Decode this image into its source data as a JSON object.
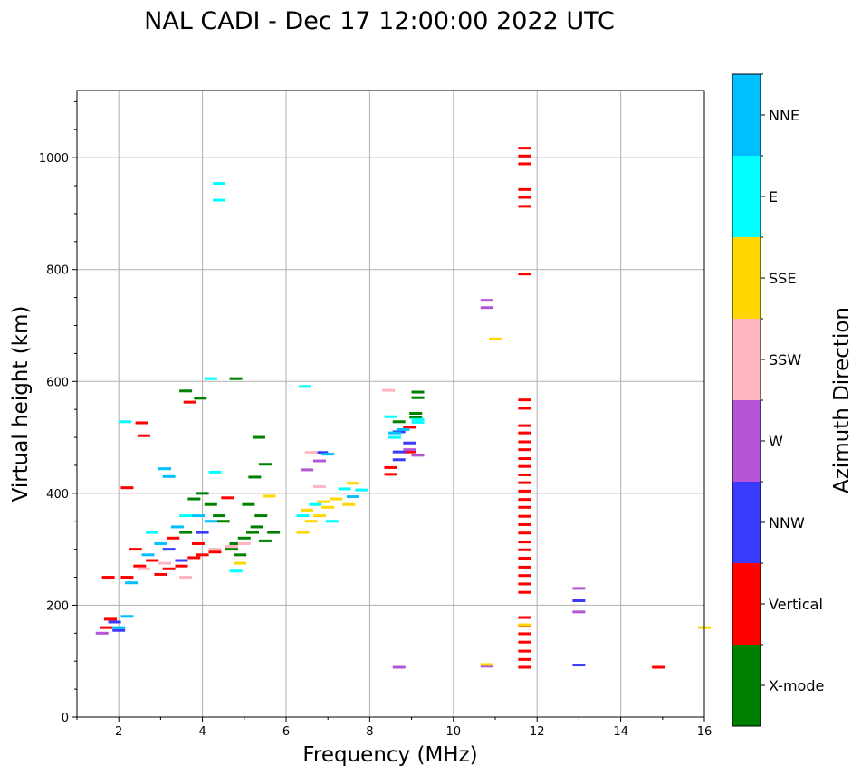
{
  "chart_data": {
    "type": "scatter",
    "title": "NAL CADI - Dec 17 12:00:00 2022 UTC",
    "xlabel": "Frequency (MHz)",
    "ylabel": "Virtual height (km)",
    "xlim": [
      1,
      16
    ],
    "ylim": [
      0,
      1120
    ],
    "xticks": [
      "2",
      "4",
      "6",
      "8",
      "10",
      "12",
      "14",
      "16"
    ],
    "xtick_values": [
      2,
      4,
      6,
      8,
      10,
      12,
      14,
      16
    ],
    "yticks": [
      "0",
      "200",
      "400",
      "600",
      "800",
      "1000"
    ],
    "ytick_values": [
      0,
      200,
      400,
      600,
      800,
      1000
    ],
    "grid": true,
    "colorbar": {
      "label": "Azimuth Direction",
      "categories": [
        {
          "name": "X-mode",
          "color": "#008000"
        },
        {
          "name": "Vertical",
          "color": "#ff0000"
        },
        {
          "name": "NNW",
          "color": "#3a3aff"
        },
        {
          "name": "W",
          "color": "#b455d6"
        },
        {
          "name": "SSW",
          "color": "#ffb6c1"
        },
        {
          "name": "SSE",
          "color": "#ffd700"
        },
        {
          "name": "E",
          "color": "#00ffff"
        },
        {
          "name": "NNE",
          "color": "#00bfff"
        }
      ]
    },
    "series": [
      {
        "name": "Vertical",
        "points": [
          [
            11.7,
            1017
          ],
          [
            11.7,
            1003
          ],
          [
            11.7,
            989
          ],
          [
            11.7,
            943
          ],
          [
            11.7,
            929
          ],
          [
            11.7,
            913
          ],
          [
            11.7,
            792
          ],
          [
            11.7,
            567
          ],
          [
            11.7,
            552
          ],
          [
            11.7,
            521
          ],
          [
            11.7,
            508
          ],
          [
            11.7,
            492
          ],
          [
            11.7,
            478
          ],
          [
            11.7,
            462
          ],
          [
            11.7,
            448
          ],
          [
            11.7,
            433
          ],
          [
            11.7,
            419
          ],
          [
            11.7,
            404
          ],
          [
            11.7,
            389
          ],
          [
            11.7,
            375
          ],
          [
            11.7,
            359
          ],
          [
            11.7,
            344
          ],
          [
            11.7,
            329
          ],
          [
            11.7,
            313
          ],
          [
            11.7,
            299
          ],
          [
            11.7,
            284
          ],
          [
            11.7,
            268
          ],
          [
            11.7,
            253
          ],
          [
            11.7,
            238
          ],
          [
            11.7,
            223
          ],
          [
            11.7,
            178
          ],
          [
            11.7,
            164
          ],
          [
            11.7,
            149
          ],
          [
            11.7,
            134
          ],
          [
            11.7,
            118
          ],
          [
            11.7,
            103
          ],
          [
            11.7,
            89
          ],
          [
            14.9,
            89
          ],
          [
            8.95,
            518
          ],
          [
            8.95,
            474
          ],
          [
            8.5,
            446
          ],
          [
            8.5,
            434
          ],
          [
            3.7,
            563
          ],
          [
            2.55,
            526
          ],
          [
            2.6,
            503
          ],
          [
            4.6,
            392
          ],
          [
            2.2,
            410
          ],
          [
            2.2,
            250
          ],
          [
            2.5,
            270
          ],
          [
            2.8,
            280
          ],
          [
            3.0,
            255
          ],
          [
            3.2,
            265
          ],
          [
            3.5,
            270
          ],
          [
            3.8,
            285
          ],
          [
            4.0,
            290
          ],
          [
            2.4,
            300
          ],
          [
            1.7,
            160
          ],
          [
            1.8,
            175
          ],
          [
            1.75,
            250
          ],
          [
            3.3,
            320
          ],
          [
            3.9,
            310
          ],
          [
            4.3,
            295
          ]
        ]
      },
      {
        "name": "X-mode",
        "points": [
          [
            9.15,
            581
          ],
          [
            9.15,
            571
          ],
          [
            9.1,
            543
          ],
          [
            9.1,
            536
          ],
          [
            8.7,
            528
          ],
          [
            3.6,
            583
          ],
          [
            4.8,
            605
          ],
          [
            3.95,
            570
          ],
          [
            5.35,
            500
          ],
          [
            5.5,
            452
          ],
          [
            4.7,
            300
          ],
          [
            4.8,
            310
          ],
          [
            5.0,
            320
          ],
          [
            5.2,
            330
          ],
          [
            5.3,
            340
          ],
          [
            5.5,
            315
          ],
          [
            5.7,
            330
          ],
          [
            4.5,
            350
          ],
          [
            4.2,
            380
          ],
          [
            4.0,
            400
          ],
          [
            3.8,
            390
          ],
          [
            5.1,
            380
          ],
          [
            5.4,
            360
          ],
          [
            4.9,
            290
          ],
          [
            4.4,
            360
          ],
          [
            3.6,
            330
          ],
          [
            5.25,
            429
          ]
        ]
      },
      {
        "name": "NNW",
        "points": [
          [
            13.0,
            208
          ],
          [
            13.0,
            93
          ],
          [
            8.7,
            510
          ],
          [
            8.7,
            474
          ],
          [
            8.7,
            460
          ],
          [
            8.95,
            490
          ],
          [
            6.85,
            473
          ],
          [
            2.0,
            155
          ],
          [
            1.9,
            170
          ],
          [
            3.2,
            300
          ],
          [
            4.0,
            330
          ],
          [
            3.5,
            280
          ]
        ]
      },
      {
        "name": "W",
        "points": [
          [
            10.8,
            745
          ],
          [
            10.8,
            732
          ],
          [
            10.8,
            91
          ],
          [
            8.7,
            89
          ],
          [
            9.15,
            468
          ],
          [
            8.95,
            478
          ],
          [
            13.0,
            230
          ],
          [
            13.0,
            188
          ],
          [
            6.8,
            458
          ],
          [
            6.5,
            442
          ],
          [
            1.6,
            150
          ]
        ]
      },
      {
        "name": "SSW",
        "points": [
          [
            8.45,
            584
          ],
          [
            6.6,
            473
          ],
          [
            6.8,
            412
          ],
          [
            2.6,
            265
          ],
          [
            3.1,
            275
          ],
          [
            3.6,
            250
          ],
          [
            4.3,
            300
          ],
          [
            4.7,
            305
          ],
          [
            5.0,
            310
          ]
        ]
      },
      {
        "name": "SSE",
        "points": [
          [
            11.0,
            676
          ],
          [
            10.8,
            94
          ],
          [
            11.7,
            165
          ],
          [
            16.0,
            160
          ],
          [
            6.4,
            330
          ],
          [
            6.6,
            350
          ],
          [
            6.8,
            360
          ],
          [
            7.0,
            375
          ],
          [
            7.2,
            390
          ],
          [
            7.5,
            380
          ],
          [
            7.6,
            418
          ],
          [
            6.9,
            385
          ],
          [
            6.5,
            370
          ],
          [
            4.9,
            275
          ],
          [
            5.6,
            395
          ]
        ]
      },
      {
        "name": "E",
        "points": [
          [
            4.4,
            954
          ],
          [
            4.4,
            924
          ],
          [
            4.2,
            605
          ],
          [
            6.45,
            591
          ],
          [
            8.5,
            537
          ],
          [
            8.6,
            500
          ],
          [
            9.15,
            527
          ],
          [
            9.15,
            532
          ],
          [
            7.8,
            406
          ],
          [
            7.4,
            408
          ],
          [
            7.1,
            350
          ],
          [
            6.7,
            380
          ],
          [
            6.4,
            360
          ],
          [
            4.3,
            438
          ],
          [
            2.15,
            528
          ],
          [
            4.8,
            261
          ],
          [
            3.6,
            360
          ],
          [
            2.8,
            330
          ]
        ]
      },
      {
        "name": "NNE",
        "points": [
          [
            8.6,
            508
          ],
          [
            8.8,
            514
          ],
          [
            3.1,
            444
          ],
          [
            3.2,
            430
          ],
          [
            2.0,
            160
          ],
          [
            2.2,
            180
          ],
          [
            2.7,
            290
          ],
          [
            3.0,
            310
          ],
          [
            3.4,
            340
          ],
          [
            3.9,
            360
          ],
          [
            7.6,
            394
          ],
          [
            7.0,
            470
          ],
          [
            4.2,
            350
          ],
          [
            2.3,
            240
          ]
        ]
      }
    ]
  }
}
